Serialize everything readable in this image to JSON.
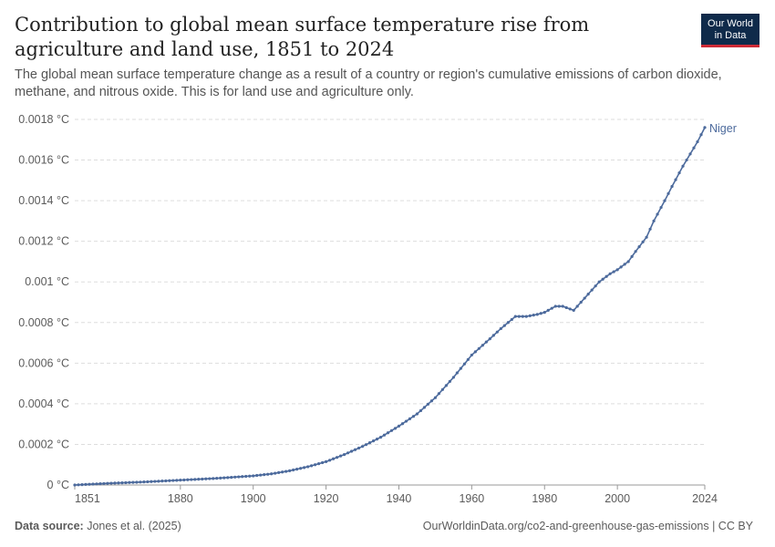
{
  "header": {
    "title": "Contribution to global mean surface temperature rise from agriculture and land use, 1851 to 2024",
    "subtitle": "The global mean surface temperature change as a result of a country or region's cumulative emissions of carbon dioxide, methane, and nitrous oxide. This is for land use and agriculture only.",
    "logo_line1": "Our World",
    "logo_line2": "in Data"
  },
  "footer": {
    "source_label": "Data source:",
    "source_text": "Jones et al. (2025)",
    "url_text": "OurWorldinData.org/co2-and-greenhouse-gas-emissions | CC BY"
  },
  "colors": {
    "series": "#4c6a9c",
    "grid": "#dddddd",
    "axis": "#999999"
  },
  "chart_data": {
    "type": "line",
    "title": "Contribution to global mean surface temperature rise from agriculture and land use, 1851 to 2024",
    "xlabel": "",
    "ylabel": "",
    "xlim": [
      1851,
      2024
    ],
    "ylim": [
      0,
      0.0018
    ],
    "x_ticks": [
      1851,
      1880,
      1900,
      1920,
      1940,
      1960,
      1980,
      2000,
      2024
    ],
    "y_ticks": [
      {
        "value": 0,
        "label": "0 °C"
      },
      {
        "value": 0.0002,
        "label": "0.0002 °C"
      },
      {
        "value": 0.0004,
        "label": "0.0004 °C"
      },
      {
        "value": 0.0006,
        "label": "0.0006 °C"
      },
      {
        "value": 0.0008,
        "label": "0.0008 °C"
      },
      {
        "value": 0.001,
        "label": "0.001 °C"
      },
      {
        "value": 0.0012,
        "label": "0.0012 °C"
      },
      {
        "value": 0.0014,
        "label": "0.0014 °C"
      },
      {
        "value": 0.0016,
        "label": "0.0016 °C"
      },
      {
        "value": 0.0018,
        "label": "0.0018 °C"
      }
    ],
    "grid": true,
    "series": [
      {
        "name": "Niger",
        "points": [
          [
            1851,
            0
          ],
          [
            1860,
            8e-06
          ],
          [
            1870,
            1.5e-05
          ],
          [
            1880,
            2.4e-05
          ],
          [
            1890,
            3.3e-05
          ],
          [
            1900,
            4.5e-05
          ],
          [
            1905,
            5.5e-05
          ],
          [
            1910,
            7e-05
          ],
          [
            1915,
            9e-05
          ],
          [
            1920,
            0.000115
          ],
          [
            1925,
            0.00015
          ],
          [
            1930,
            0.00019
          ],
          [
            1935,
            0.000235
          ],
          [
            1940,
            0.00029
          ],
          [
            1945,
            0.00035
          ],
          [
            1950,
            0.00043
          ],
          [
            1955,
            0.00053
          ],
          [
            1960,
            0.00064
          ],
          [
            1965,
            0.00072
          ],
          [
            1968,
            0.00077
          ],
          [
            1970,
            0.0008
          ],
          [
            1972,
            0.00083
          ],
          [
            1975,
            0.00083
          ],
          [
            1978,
            0.00084
          ],
          [
            1980,
            0.00085
          ],
          [
            1983,
            0.00088
          ],
          [
            1985,
            0.00088
          ],
          [
            1988,
            0.00086
          ],
          [
            1990,
            0.0009
          ],
          [
            1993,
            0.00096
          ],
          [
            1995,
            0.001
          ],
          [
            1998,
            0.00104
          ],
          [
            2000,
            0.00106
          ],
          [
            2003,
            0.0011
          ],
          [
            2005,
            0.00115
          ],
          [
            2008,
            0.00122
          ],
          [
            2010,
            0.0013
          ],
          [
            2013,
            0.0014
          ],
          [
            2015,
            0.00147
          ],
          [
            2018,
            0.00157
          ],
          [
            2020,
            0.00163
          ],
          [
            2022,
            0.00169
          ],
          [
            2024,
            0.00176
          ]
        ]
      }
    ]
  }
}
